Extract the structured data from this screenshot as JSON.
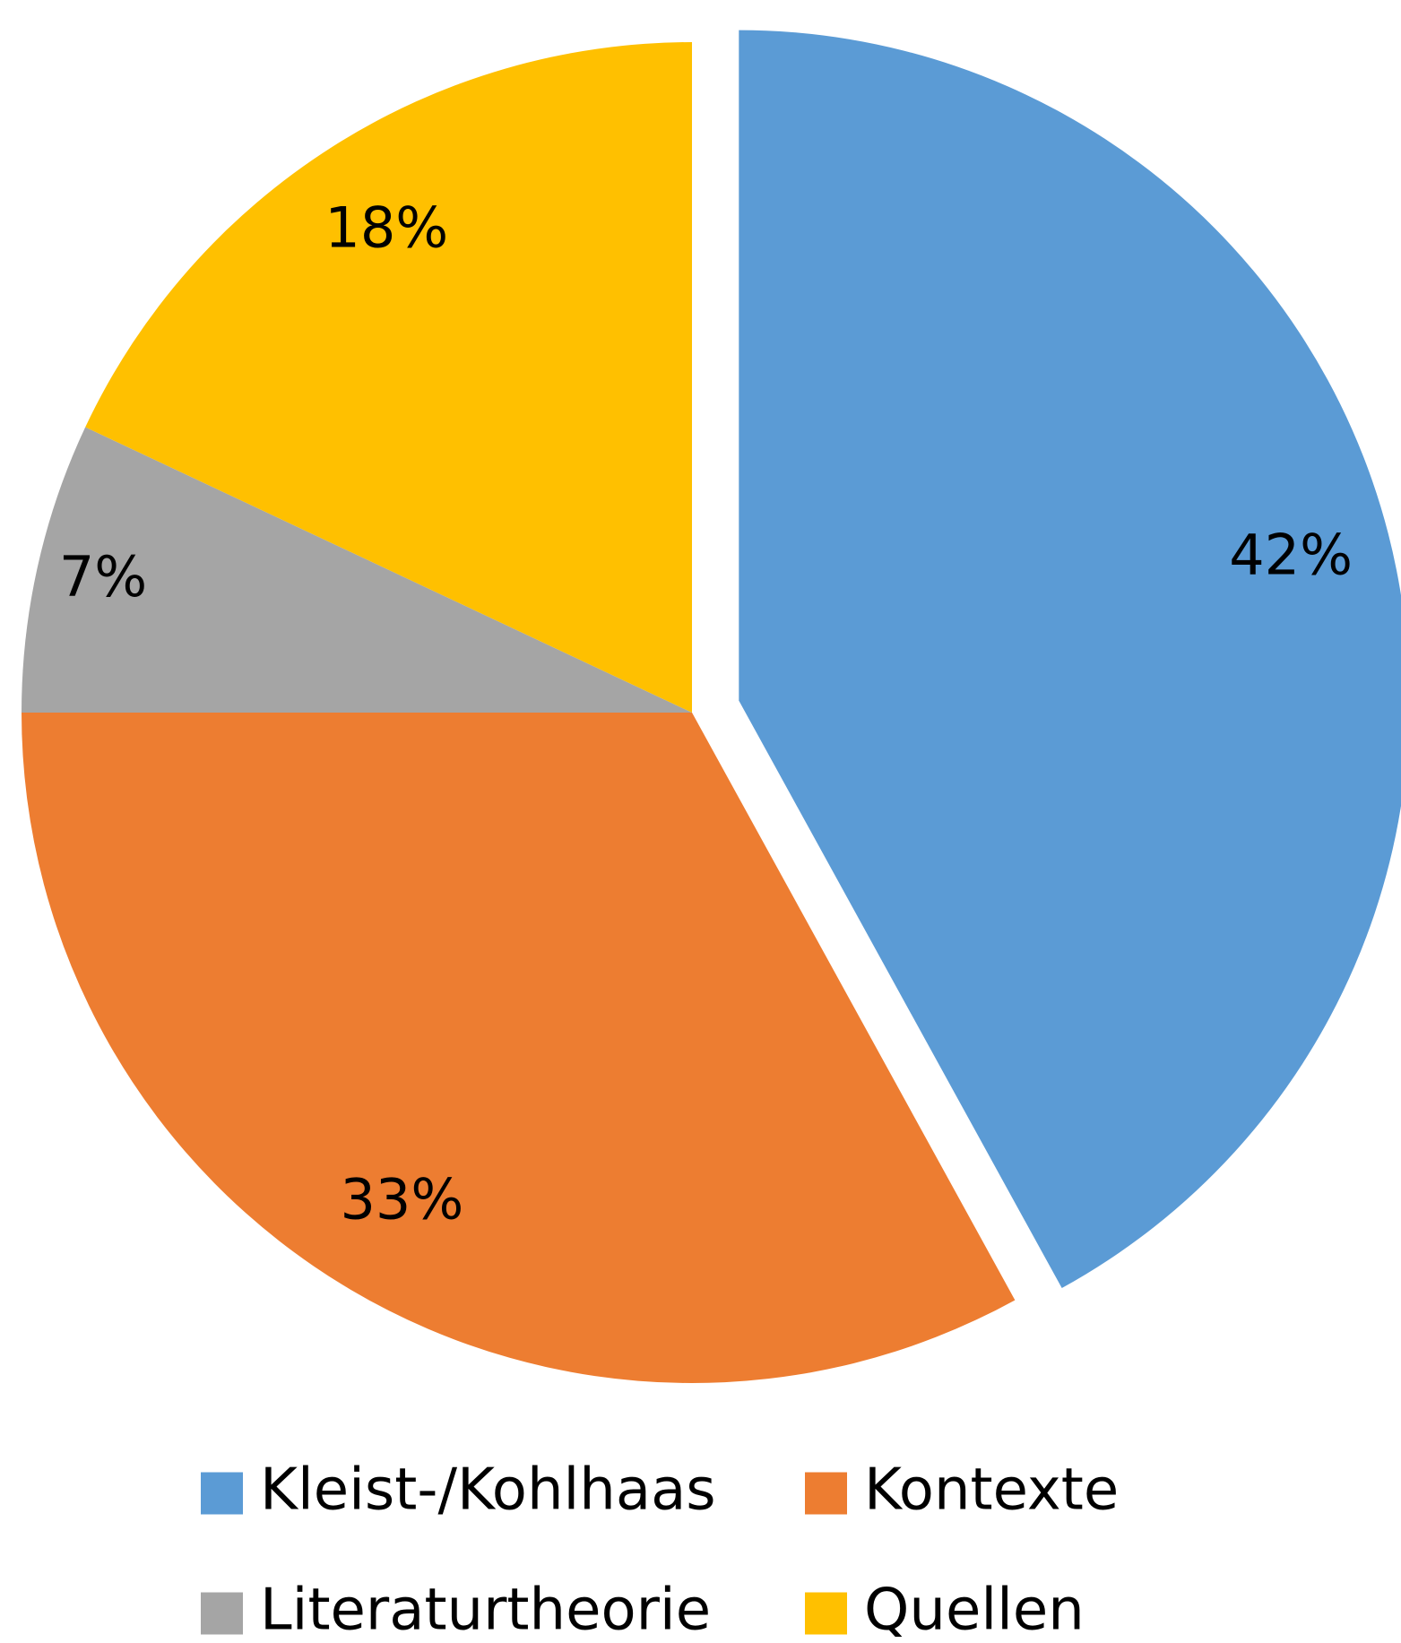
{
  "chart_data": {
    "type": "pie",
    "categories": [
      "Kleist-/Kohlhaas",
      "Kontexte",
      "Literaturtheorie",
      "Quellen"
    ],
    "values": [
      42,
      33,
      7,
      18
    ],
    "value_labels": [
      "42%",
      "33%",
      "7%",
      "18%"
    ],
    "colors": [
      "#5b9bd5",
      "#ed7d31",
      "#a5a5a5",
      "#ffc000"
    ],
    "exploded": [
      true,
      false,
      false,
      false
    ]
  }
}
